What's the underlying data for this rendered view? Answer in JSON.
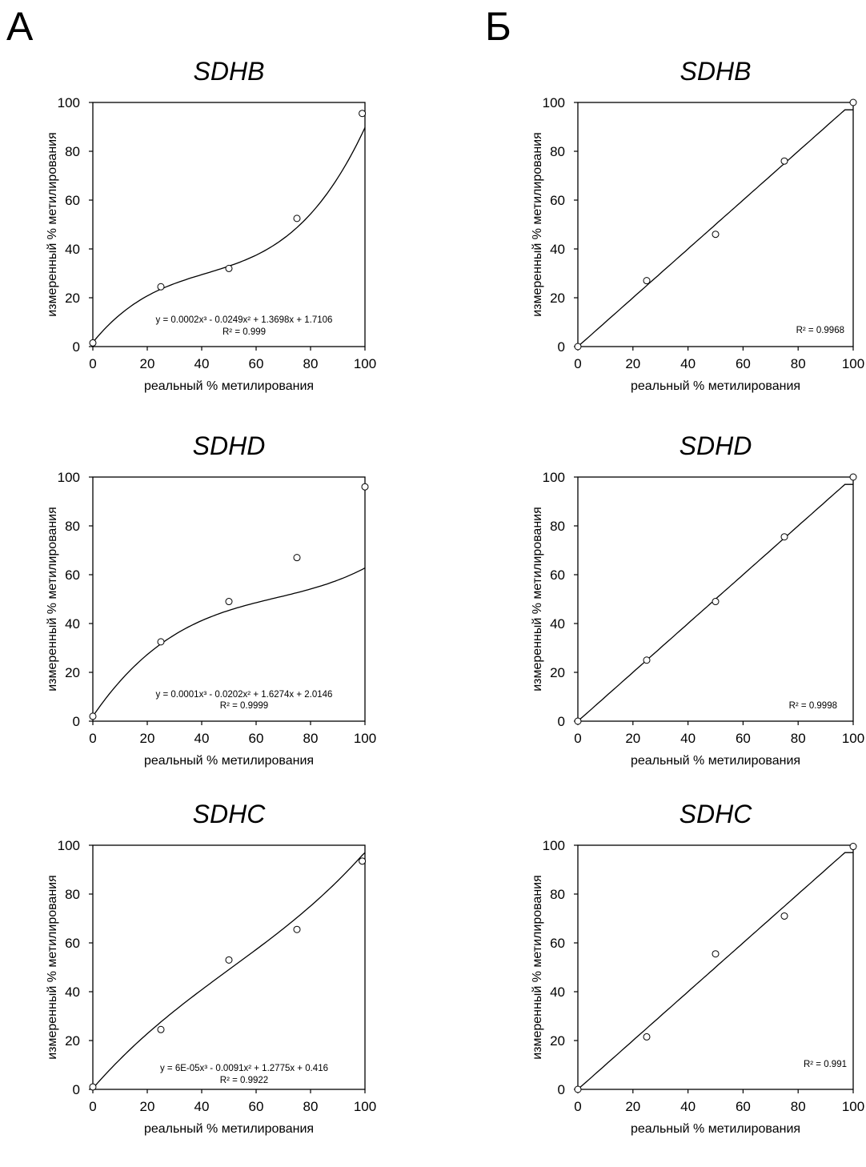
{
  "panels": {
    "a": "А",
    "b": "Б"
  },
  "chart_data": [
    {
      "id": "a1",
      "type": "scatter",
      "title": "SDHB",
      "xlabel": "реальный % метилирования",
      "ylabel": "измеренный % метилирования",
      "xlim": [
        0,
        100
      ],
      "ylim": [
        0,
        100
      ],
      "xticks": [
        0,
        20,
        40,
        60,
        80,
        100
      ],
      "yticks": [
        0,
        20,
        40,
        60,
        80,
        100
      ],
      "x": [
        0,
        25,
        50,
        75,
        99
      ],
      "y": [
        1.5,
        24.5,
        32,
        52.5,
        95.5
      ],
      "fit": {
        "kind": "cubic",
        "coef": [
          0.0002,
          -0.0249,
          1.3698,
          1.7106
        ]
      },
      "annotation": {
        "equation": "y = 0.0002x³ - 0.0249x² + 1.3698x + 1.7106",
        "r2": "R² = 0.999"
      }
    },
    {
      "id": "b1",
      "type": "scatter",
      "title": "SDHB",
      "xlabel": "реальный % метилирования",
      "ylabel": "измеренный % метилирования",
      "xlim": [
        0,
        100
      ],
      "ylim": [
        0,
        100
      ],
      "xticks": [
        0,
        20,
        40,
        60,
        80,
        100
      ],
      "yticks": [
        0,
        20,
        40,
        60,
        80,
        100
      ],
      "x": [
        0,
        25,
        50,
        75,
        100
      ],
      "y": [
        0,
        27,
        46,
        76,
        100
      ],
      "fit": {
        "kind": "linear",
        "coef": [
          0,
          1
        ]
      },
      "annotation": {
        "equation": "",
        "r2": "R² = 0.9968"
      }
    },
    {
      "id": "a2",
      "type": "scatter",
      "title": "SDHD",
      "xlabel": "реальный % метилирования",
      "ylabel": "измеренный % метилирования",
      "xlim": [
        0,
        100
      ],
      "ylim": [
        0,
        100
      ],
      "xticks": [
        0,
        20,
        40,
        60,
        80,
        100
      ],
      "yticks": [
        0,
        20,
        40,
        60,
        80,
        100
      ],
      "x": [
        0,
        25,
        50,
        75,
        100
      ],
      "y": [
        2,
        32.5,
        49,
        67,
        96
      ],
      "fit": {
        "kind": "cubic",
        "coef": [
          0.0001,
          -0.0202,
          1.6274,
          2.0146
        ]
      },
      "annotation": {
        "equation": "y = 0.0001x³ - 0.0202x² + 1.6274x + 2.0146",
        "r2": "R² = 0.9999"
      }
    },
    {
      "id": "b2",
      "type": "scatter",
      "title": "SDHD",
      "xlabel": "реальный % метилирования",
      "ylabel": "измеренный % метилирования",
      "xlim": [
        0,
        100
      ],
      "ylim": [
        0,
        100
      ],
      "xticks": [
        0,
        20,
        40,
        60,
        80,
        100
      ],
      "yticks": [
        0,
        20,
        40,
        60,
        80,
        100
      ],
      "x": [
        0,
        25,
        50,
        75,
        100
      ],
      "y": [
        0,
        25,
        49,
        75.5,
        100
      ],
      "fit": {
        "kind": "linear",
        "coef": [
          0,
          1
        ]
      },
      "annotation": {
        "equation": "",
        "r2": "R² = 0.9998"
      }
    },
    {
      "id": "a3",
      "type": "scatter",
      "title": "SDHC",
      "xlabel": "реальный % метилирования",
      "ylabel": "измеренный % метилирования",
      "xlim": [
        0,
        100
      ],
      "ylim": [
        0,
        100
      ],
      "xticks": [
        0,
        20,
        40,
        60,
        80,
        100
      ],
      "yticks": [
        0,
        20,
        40,
        60,
        80,
        100
      ],
      "x": [
        0,
        25,
        50,
        75,
        99
      ],
      "y": [
        1,
        24.5,
        53,
        65.5,
        93.5
      ],
      "fit": {
        "kind": "cubic",
        "coef": [
          6e-05,
          -0.0091,
          1.2775,
          0.416
        ]
      },
      "annotation": {
        "equation": "y = 6E-05x³ - 0.0091x² + 1.2775x + 0.416",
        "r2": "R² = 0.9922"
      }
    },
    {
      "id": "b3",
      "type": "scatter",
      "title": "SDHC",
      "xlabel": "реальный % метилирования",
      "ylabel": "измеренный % метилирования",
      "xlim": [
        0,
        100
      ],
      "ylim": [
        0,
        100
      ],
      "xticks": [
        0,
        20,
        40,
        60,
        80,
        100
      ],
      "yticks": [
        0,
        20,
        40,
        60,
        80,
        100
      ],
      "x": [
        0,
        25,
        50,
        75,
        100
      ],
      "y": [
        0,
        21.5,
        55.5,
        71,
        99.5
      ],
      "fit": {
        "kind": "linear",
        "coef": [
          0,
          1
        ]
      },
      "annotation": {
        "equation": "",
        "r2": "R² = 0.991"
      }
    }
  ]
}
